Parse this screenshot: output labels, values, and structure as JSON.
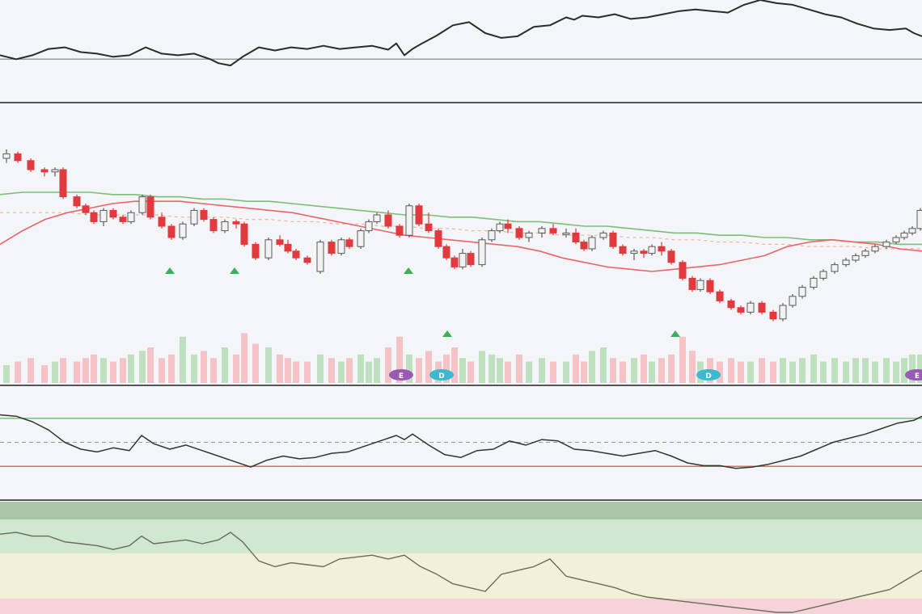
{
  "colors": {
    "background": "#f4f5f8",
    "separator": "#555555",
    "candle_up_fill": "#f2f2f2",
    "candle_up_border": "#5a5a5a",
    "candle_down": "#e0393e",
    "candle_doji_dark": "#222222",
    "ma_fast": "#e8666a",
    "ma_slow": "#7bbf78",
    "ma_dashed": "#f0b59a",
    "volume_up": "#bfe0bf",
    "volume_down": "#f5c2c6",
    "signal_arrow": "#3fae5c",
    "event_e": "#9b59b6",
    "event_d": "#3cb8d0",
    "osc_line": "#333333",
    "upper_band_line": "#7bbf78",
    "lower_band_line": "#e8666a",
    "midline": "#999999",
    "zone_dark_green": "#a9c6a9",
    "zone_green": "#cfe8cf",
    "zone_yellow": "#f2f0d6",
    "zone_pink": "#f5d3d8"
  },
  "chart_data": [
    {
      "type": "line",
      "panel": "top-indicator",
      "x": [
        0,
        20,
        40,
        60,
        80,
        100,
        120,
        140,
        160,
        180,
        200,
        220,
        240,
        260,
        270,
        285,
        300,
        320,
        340,
        360,
        380,
        400,
        420,
        440,
        460,
        480,
        490,
        500,
        510,
        520,
        540,
        560,
        580,
        600,
        620,
        640,
        660,
        680,
        700,
        710,
        720,
        740,
        760,
        780,
        800,
        820,
        840,
        860,
        880,
        900,
        920,
        940,
        960,
        980,
        1000,
        1020,
        1040,
        1060,
        1080,
        1100,
        1120,
        1130,
        1140
      ],
      "values": [
        60,
        55,
        60,
        68,
        70,
        64,
        62,
        58,
        60,
        70,
        62,
        60,
        62,
        55,
        50,
        47,
        58,
        70,
        66,
        70,
        68,
        72,
        68,
        70,
        72,
        67,
        75,
        60,
        68,
        74,
        85,
        98,
        102,
        88,
        82,
        84,
        96,
        98,
        108,
        105,
        110,
        108,
        112,
        106,
        108,
        112,
        116,
        118,
        116,
        114,
        124,
        130,
        126,
        124,
        118,
        112,
        108,
        100,
        94,
        92,
        94,
        88,
        84
      ],
      "reference_level": 55,
      "ylim": [
        0,
        130
      ]
    },
    {
      "type": "candlestick",
      "panel": "price",
      "ylim": [
        0,
        100
      ],
      "x": [
        8,
        22,
        38,
        55,
        68,
        78,
        95,
        106,
        116,
        128,
        140,
        152,
        162,
        176,
        186,
        200,
        212,
        226,
        240,
        252,
        264,
        278,
        292,
        302,
        316,
        332,
        346,
        356,
        366,
        380,
        396,
        410,
        422,
        432,
        446,
        456,
        466,
        480,
        494,
        506,
        518,
        530,
        542,
        552,
        562,
        572,
        582,
        596,
        608,
        618,
        628,
        642,
        654,
        670,
        684,
        700,
        712,
        722,
        732,
        746,
        758,
        770,
        784,
        796,
        806,
        818,
        830,
        844,
        856,
        866,
        878,
        890,
        904,
        916,
        928,
        942,
        956,
        968,
        980,
        992,
        1006,
        1018,
        1032,
        1046,
        1058,
        1070,
        1082,
        1096,
        1108,
        1118,
        1128,
        1138
      ],
      "ohlc": [
        [
          80,
          84,
          78,
          82
        ],
        [
          82,
          83,
          78,
          79
        ],
        [
          79,
          80,
          74,
          75
        ],
        [
          75,
          76,
          72,
          74
        ],
        [
          74,
          76,
          72,
          75
        ],
        [
          75,
          76,
          62,
          63
        ],
        [
          63,
          64,
          58,
          59
        ],
        [
          59,
          60,
          55,
          56
        ],
        [
          56,
          57,
          51,
          52
        ],
        [
          52,
          58,
          50,
          57
        ],
        [
          57,
          58,
          53,
          54
        ],
        [
          54,
          55,
          51,
          52
        ],
        [
          52,
          57,
          51,
          56
        ],
        [
          56,
          64,
          55,
          63
        ],
        [
          63,
          64,
          53,
          54
        ],
        [
          54,
          56,
          49,
          50
        ],
        [
          50,
          51,
          44,
          45
        ],
        [
          45,
          52,
          44,
          51
        ],
        [
          51,
          58,
          50,
          57
        ],
        [
          57,
          58,
          52,
          53
        ],
        [
          53,
          54,
          47,
          48
        ],
        [
          48,
          53,
          47,
          52
        ],
        [
          52,
          53,
          49,
          51
        ],
        [
          51,
          52,
          41,
          42
        ],
        [
          42,
          43,
          35,
          36
        ],
        [
          36,
          45,
          35,
          44
        ],
        [
          44,
          46,
          41,
          42
        ],
        [
          42,
          44,
          38,
          39
        ],
        [
          39,
          40,
          35,
          36
        ],
        [
          36,
          37,
          33,
          34
        ],
        [
          30,
          44,
          29,
          43
        ],
        [
          43,
          44,
          37,
          38
        ],
        [
          38,
          45,
          37,
          44
        ],
        [
          44,
          45,
          40,
          41
        ],
        [
          41,
          49,
          40,
          48
        ],
        [
          48,
          53,
          47,
          52
        ],
        [
          52,
          56,
          51,
          55
        ],
        [
          55,
          57,
          49,
          50
        ],
        [
          50,
          51,
          45,
          46
        ],
        [
          46,
          60,
          45,
          59
        ],
        [
          59,
          60,
          50,
          51
        ],
        [
          51,
          56,
          47,
          48
        ],
        [
          48,
          49,
          40,
          41
        ],
        [
          41,
          42,
          35,
          36
        ],
        [
          36,
          37,
          31,
          32
        ],
        [
          32,
          40,
          31,
          38
        ],
        [
          38,
          39,
          32,
          33
        ],
        [
          33,
          45,
          32,
          44
        ],
        [
          44,
          49,
          43,
          48
        ],
        [
          48,
          52,
          47,
          51
        ],
        [
          51,
          53,
          47,
          49
        ],
        [
          49,
          50,
          44,
          45
        ],
        [
          45,
          48,
          43,
          47
        ],
        [
          47,
          50,
          45,
          49
        ],
        [
          49,
          51,
          46,
          47
        ],
        [
          47,
          49,
          45,
          47
        ],
        [
          47,
          49,
          42,
          43
        ],
        [
          43,
          44,
          39,
          40
        ],
        [
          40,
          46,
          39,
          45
        ],
        [
          45,
          48,
          44,
          47
        ],
        [
          47,
          48,
          40,
          41
        ],
        [
          41,
          42,
          37,
          38
        ],
        [
          38,
          40,
          35,
          39
        ],
        [
          39,
          40,
          36,
          38
        ],
        [
          38,
          42,
          37,
          41
        ],
        [
          41,
          43,
          37,
          39
        ],
        [
          39,
          40,
          33,
          34
        ],
        [
          34,
          35,
          26,
          27
        ],
        [
          27,
          28,
          21,
          22
        ],
        [
          22,
          27,
          21,
          26
        ],
        [
          26,
          27,
          20,
          21
        ],
        [
          21,
          22,
          16,
          17
        ],
        [
          17,
          18,
          13,
          14
        ],
        [
          14,
          15,
          11,
          12
        ],
        [
          12,
          17,
          11,
          16
        ],
        [
          16,
          17,
          11,
          12
        ],
        [
          12,
          13,
          8,
          9
        ],
        [
          9,
          16,
          8,
          15
        ],
        [
          15,
          20,
          14,
          19
        ],
        [
          19,
          24,
          18,
          23
        ],
        [
          23,
          28,
          22,
          27
        ],
        [
          27,
          31,
          26,
          30
        ],
        [
          30,
          34,
          29,
          33
        ],
        [
          33,
          36,
          32,
          35
        ],
        [
          35,
          38,
          34,
          37
        ],
        [
          37,
          40,
          36,
          39
        ],
        [
          39,
          42,
          38,
          41
        ],
        [
          41,
          44,
          40,
          43
        ],
        [
          43,
          46,
          42,
          45
        ],
        [
          45,
          48,
          44,
          47
        ],
        [
          47,
          50,
          46,
          49
        ],
        [
          49,
          58,
          48,
          57
        ]
      ],
      "ma_fast": [
        42,
        48,
        53,
        56,
        58,
        60,
        61,
        61,
        61,
        60,
        59,
        58,
        57,
        56,
        54,
        52,
        50,
        48,
        46,
        45,
        44,
        43,
        42,
        41,
        39,
        36,
        34,
        32,
        31,
        30,
        31,
        32,
        33,
        35,
        37,
        41,
        43,
        44,
        43,
        42,
        40,
        39
      ],
      "ma_slow": [
        64,
        65,
        65,
        65,
        65,
        64,
        64,
        63,
        63,
        62,
        62,
        61,
        61,
        60,
        59,
        58,
        57,
        56,
        55,
        55,
        54,
        54,
        53,
        52,
        52,
        51,
        50,
        50,
        49,
        48,
        47,
        47,
        46,
        46,
        45,
        45,
        44,
        44,
        43,
        43,
        42,
        42
      ],
      "ma_dashed": [
        56,
        56,
        56,
        56,
        55,
        55,
        55,
        55,
        54,
        54,
        54,
        53,
        53,
        52,
        52,
        51,
        51,
        50,
        50,
        49,
        49,
        48,
        48,
        47,
        47,
        46,
        46,
        46,
        45,
        45,
        44,
        44,
        43,
        43,
        42,
        42,
        41,
        41,
        41,
        40,
        40,
        40
      ],
      "volume": [
        10,
        12,
        14,
        10,
        12,
        14,
        12,
        14,
        16,
        14,
        12,
        14,
        16,
        18,
        20,
        14,
        16,
        26,
        16,
        18,
        14,
        20,
        16,
        28,
        22,
        20,
        16,
        14,
        12,
        12,
        16,
        14,
        12,
        14,
        16,
        12,
        14,
        20,
        26,
        16,
        14,
        18,
        12,
        16,
        20,
        14,
        12,
        18,
        16,
        14,
        12,
        16,
        12,
        14,
        12,
        12,
        16,
        12,
        18,
        20,
        14,
        12,
        14,
        16,
        12,
        14,
        16,
        26,
        18,
        12,
        14,
        12,
        14,
        12,
        12,
        14,
        12,
        14,
        12,
        14,
        16,
        12,
        14,
        12,
        14,
        14,
        12,
        14,
        12,
        14,
        16,
        16
      ],
      "signal_arrows_x": [
        210,
        290,
        505,
        553,
        835
      ],
      "event_markers": [
        {
          "x": 496,
          "label": "E"
        },
        {
          "x": 546,
          "label": "D"
        },
        {
          "x": 876,
          "label": "D"
        },
        {
          "x": 1134,
          "label": "E"
        }
      ]
    },
    {
      "type": "line",
      "panel": "oscillator",
      "ylim": [
        0,
        100
      ],
      "upper_level": 85,
      "lower_level": 15,
      "mid_level": 50,
      "x": [
        0,
        20,
        40,
        60,
        80,
        100,
        120,
        140,
        160,
        175,
        190,
        210,
        230,
        250,
        270,
        290,
        310,
        330,
        350,
        370,
        390,
        410,
        430,
        450,
        470,
        490,
        500,
        510,
        530,
        550,
        570,
        590,
        610,
        630,
        650,
        670,
        690,
        710,
        730,
        750,
        770,
        790,
        810,
        830,
        850,
        870,
        890,
        910,
        930,
        950,
        970,
        990,
        1010,
        1030,
        1050,
        1070,
        1090,
        1110,
        1130,
        1140
      ],
      "values": [
        90,
        88,
        80,
        68,
        50,
        40,
        36,
        42,
        38,
        60,
        48,
        40,
        46,
        38,
        30,
        22,
        14,
        24,
        30,
        26,
        28,
        34,
        36,
        44,
        52,
        60,
        54,
        62,
        46,
        32,
        28,
        38,
        40,
        52,
        46,
        54,
        52,
        40,
        38,
        34,
        30,
        34,
        38,
        30,
        20,
        16,
        16,
        12,
        14,
        18,
        24,
        30,
        40,
        50,
        56,
        62,
        70,
        78,
        82,
        88
      ]
    },
    {
      "type": "area",
      "panel": "bottom-zones",
      "ylim": [
        0,
        100
      ],
      "zones": [
        "dark-green",
        "green",
        "yellow",
        "pink"
      ],
      "x": [
        0,
        20,
        40,
        60,
        80,
        100,
        120,
        140,
        160,
        175,
        190,
        210,
        230,
        250,
        270,
        285,
        300,
        320,
        340,
        360,
        380,
        400,
        420,
        440,
        460,
        480,
        500,
        520,
        540,
        560,
        580,
        600,
        620,
        640,
        660,
        680,
        700,
        720,
        740,
        760,
        780,
        800,
        820,
        840,
        860,
        880,
        900,
        920,
        940,
        960,
        980,
        1000,
        1020,
        1040,
        1060,
        1080,
        1100,
        1120,
        1140
      ],
      "values": [
        82,
        84,
        80,
        80,
        74,
        72,
        70,
        66,
        70,
        80,
        72,
        74,
        76,
        72,
        76,
        84,
        74,
        54,
        48,
        52,
        50,
        48,
        56,
        58,
        60,
        56,
        60,
        48,
        40,
        30,
        26,
        22,
        40,
        44,
        48,
        56,
        38,
        34,
        30,
        26,
        20,
        16,
        14,
        12,
        10,
        8,
        6,
        4,
        2,
        0,
        0,
        4,
        8,
        12,
        16,
        20,
        24,
        34,
        44
      ]
    }
  ]
}
